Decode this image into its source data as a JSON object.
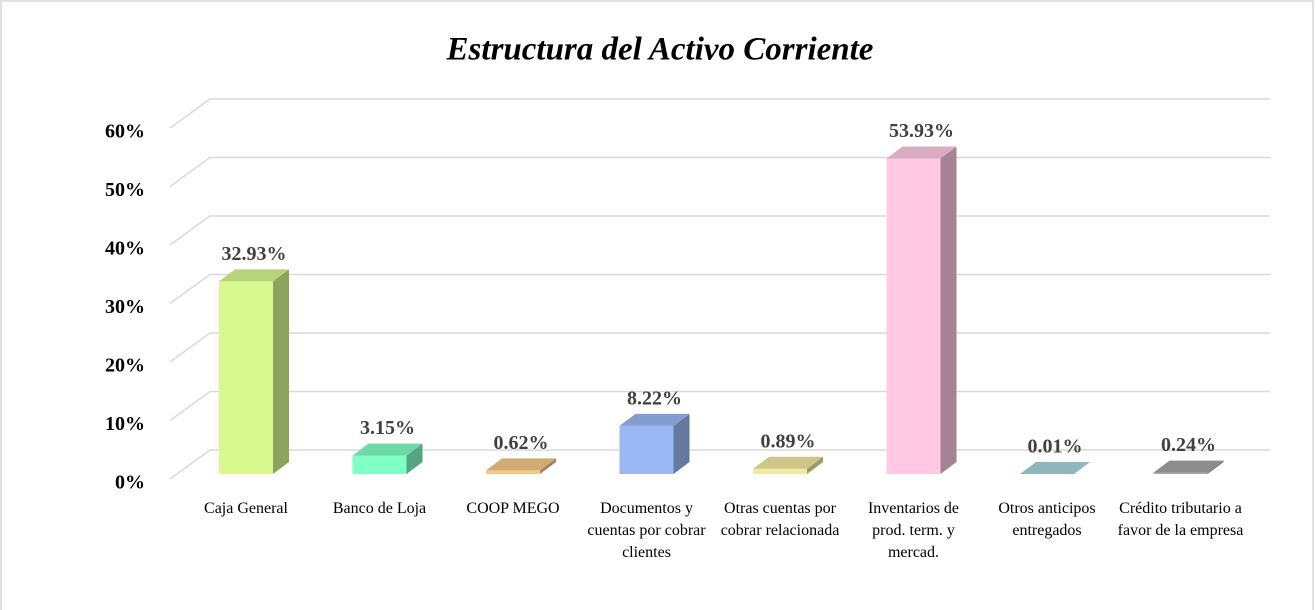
{
  "chart_data": {
    "type": "bar3d",
    "title": "Estructura del Activo Corriente",
    "categories": [
      "Caja General",
      "Banco de Loja",
      "COOP MEGO",
      "Documentos y cuentas por cobrar clientes",
      "Otras cuentas por cobrar relacionada",
      "Inventarios de prod. term. y mercad.",
      "Otros anticipos entregados",
      "Crédito tributario a favor de la empresa"
    ],
    "values": [
      32.93,
      3.15,
      0.62,
      8.22,
      0.89,
      53.93,
      0.01,
      0.24
    ],
    "value_labels": [
      "32.93%",
      "3.15%",
      "0.62%",
      "8.22%",
      "0.89%",
      "53.93%",
      "0.01%",
      "0.24%"
    ],
    "colors": [
      "#d9f98f",
      "#7fffc3",
      "#f6c98a",
      "#9bb8f5",
      "#f0eaa0",
      "#ffc9e3",
      "#a8d6e0",
      "#a6a6a6"
    ],
    "ylim": [
      0,
      60
    ],
    "yticks": [
      {
        "value": 0,
        "label": "0%"
      },
      {
        "value": 10,
        "label": "10%"
      },
      {
        "value": 20,
        "label": "20%"
      },
      {
        "value": 30,
        "label": "30%"
      },
      {
        "value": 40,
        "label": "40%"
      },
      {
        "value": 50,
        "label": "50%"
      },
      {
        "value": 60,
        "label": "60%"
      }
    ],
    "grid": true
  }
}
